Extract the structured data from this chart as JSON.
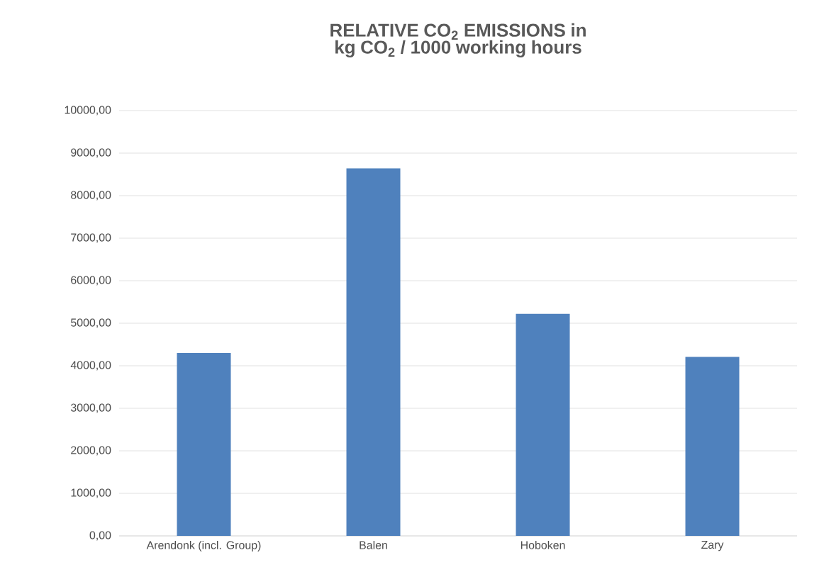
{
  "chart_data": {
    "type": "bar",
    "title": "RELATIVE CO$_{2}$ EMISSIONS in kg CO$_{2}$ / 1000 working hours",
    "categories": [
      "Arendonk (incl. Group)",
      "Balen",
      "Hoboken",
      "Zary"
    ],
    "values": [
      4300,
      8640,
      5220,
      4210
    ],
    "color": "#4f81bd",
    "ylim": [
      0,
      10000
    ],
    "yticks": [
      {
        "value": 0,
        "label": "0,00"
      },
      {
        "value": 1000,
        "label": "1000,00"
      },
      {
        "value": 2000,
        "label": "2000,00"
      },
      {
        "value": 3000,
        "label": "3000,00"
      },
      {
        "value": 4000,
        "label": "4000,00"
      },
      {
        "value": 5000,
        "label": "5000,00"
      },
      {
        "value": 6000,
        "label": "6000,00"
      },
      {
        "value": 7000,
        "label": "7000,00"
      },
      {
        "value": 8000,
        "label": "8000,00"
      },
      {
        "value": 9000,
        "label": "9000,00"
      },
      {
        "value": 10000,
        "label": "10000,00"
      }
    ],
    "grid": "y"
  }
}
